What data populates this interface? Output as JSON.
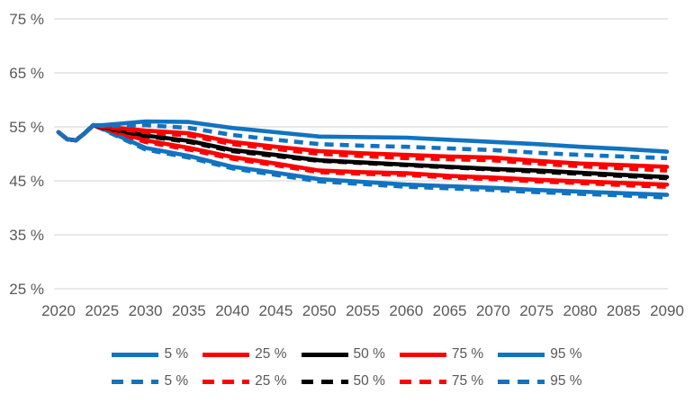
{
  "colors": {
    "background": "#ffffff",
    "grid": "#d9d9d9",
    "axis_text": "#595959",
    "blue": "#1273c0",
    "red": "#fe0000",
    "black": "#000000"
  },
  "chart_data": {
    "type": "line",
    "title": "",
    "xlabel": "",
    "ylabel": "",
    "grid": "horizontal-only",
    "legend_position": "bottom-two-rows",
    "ylim": [
      25,
      75
    ],
    "xlim": [
      2020,
      2090
    ],
    "y_ticks": [
      75,
      65,
      55,
      45,
      35,
      25
    ],
    "y_tick_suffix": " %",
    "x_ticks": [
      2020,
      2025,
      2030,
      2035,
      2040,
      2045,
      2050,
      2055,
      2060,
      2065,
      2070,
      2075,
      2080,
      2085,
      2090
    ],
    "x": [
      2020,
      2021,
      2022,
      2023,
      2024,
      2025,
      2030,
      2035,
      2040,
      2045,
      2050,
      2055,
      2060,
      2065,
      2070,
      2075,
      2080,
      2085,
      2090
    ],
    "series": [
      {
        "id": "5pct-solid",
        "name": "5 %",
        "dash": "solid",
        "color": "#1273c0",
        "values": [
          54.0,
          52.7,
          52.5,
          53.8,
          55.3,
          54.7,
          51.1,
          49.6,
          47.6,
          46.5,
          45.3,
          44.8,
          44.3,
          44.0,
          43.7,
          43.3,
          43.0,
          42.7,
          42.4
        ]
      },
      {
        "id": "25pct-solid",
        "name": "25 %",
        "dash": "solid",
        "color": "#fe0000",
        "values": [
          54.0,
          52.7,
          52.5,
          53.8,
          55.3,
          54.9,
          52.5,
          51.1,
          49.4,
          48.2,
          46.9,
          46.6,
          46.4,
          45.9,
          45.6,
          45.2,
          44.9,
          44.6,
          44.3
        ]
      },
      {
        "id": "50pct-solid",
        "name": "50 %",
        "dash": "solid",
        "color": "#000000",
        "values": [
          54.0,
          52.7,
          52.5,
          53.8,
          55.3,
          55.0,
          53.4,
          52.4,
          50.7,
          49.8,
          48.8,
          48.4,
          48.0,
          47.6,
          47.2,
          46.9,
          46.5,
          46.1,
          45.7
        ]
      },
      {
        "id": "75pct-solid",
        "name": "75 %",
        "dash": "solid",
        "color": "#fe0000",
        "values": [
          54.0,
          52.7,
          52.5,
          53.8,
          55.3,
          55.1,
          54.3,
          53.8,
          52.2,
          51.3,
          50.5,
          50.1,
          49.8,
          49.5,
          49.3,
          48.7,
          48.2,
          47.9,
          47.6
        ]
      },
      {
        "id": "95pct-solid",
        "name": "95 %",
        "dash": "solid",
        "color": "#1273c0",
        "values": [
          54.0,
          52.7,
          52.5,
          53.8,
          55.3,
          55.3,
          56.0,
          55.9,
          54.8,
          54.0,
          53.2,
          53.1,
          53.0,
          52.6,
          52.2,
          51.8,
          51.3,
          50.9,
          50.4
        ]
      },
      {
        "id": "5pct-dashed",
        "name": "5 %",
        "dash": "dashed",
        "color": "#1273c0",
        "values": [
          54.0,
          52.7,
          52.5,
          53.8,
          55.3,
          54.6,
          50.8,
          49.3,
          47.3,
          46.1,
          44.9,
          44.4,
          43.9,
          43.6,
          43.3,
          42.9,
          42.6,
          42.3,
          41.9
        ]
      },
      {
        "id": "25pct-dashed",
        "name": "25 %",
        "dash": "dashed",
        "color": "#fe0000",
        "values": [
          54.0,
          52.7,
          52.5,
          53.8,
          55.3,
          54.8,
          52.2,
          50.8,
          49.1,
          47.9,
          46.6,
          46.3,
          46.1,
          45.6,
          45.3,
          44.9,
          44.6,
          44.2,
          43.9
        ]
      },
      {
        "id": "50pct-dashed",
        "name": "50 %",
        "dash": "dashed",
        "color": "#000000",
        "values": [
          54.0,
          52.7,
          52.5,
          53.8,
          55.3,
          54.9,
          53.3,
          52.2,
          50.5,
          49.6,
          48.7,
          48.3,
          47.9,
          47.5,
          47.1,
          46.7,
          46.3,
          45.9,
          45.5
        ]
      },
      {
        "id": "75pct-dashed",
        "name": "75 %",
        "dash": "dashed",
        "color": "#fe0000",
        "values": [
          54.0,
          52.7,
          52.5,
          53.8,
          55.3,
          55.0,
          54.0,
          53.4,
          51.8,
          50.9,
          50.0,
          49.6,
          49.2,
          49.0,
          48.8,
          48.2,
          47.7,
          47.3,
          46.9
        ]
      },
      {
        "id": "95pct-dashed",
        "name": "95 %",
        "dash": "dashed",
        "color": "#1273c0",
        "values": [
          54.0,
          52.7,
          52.5,
          53.8,
          55.3,
          55.2,
          55.3,
          54.8,
          53.5,
          52.6,
          51.8,
          51.5,
          51.3,
          51.0,
          50.7,
          50.2,
          49.8,
          49.5,
          49.2
        ]
      }
    ]
  }
}
